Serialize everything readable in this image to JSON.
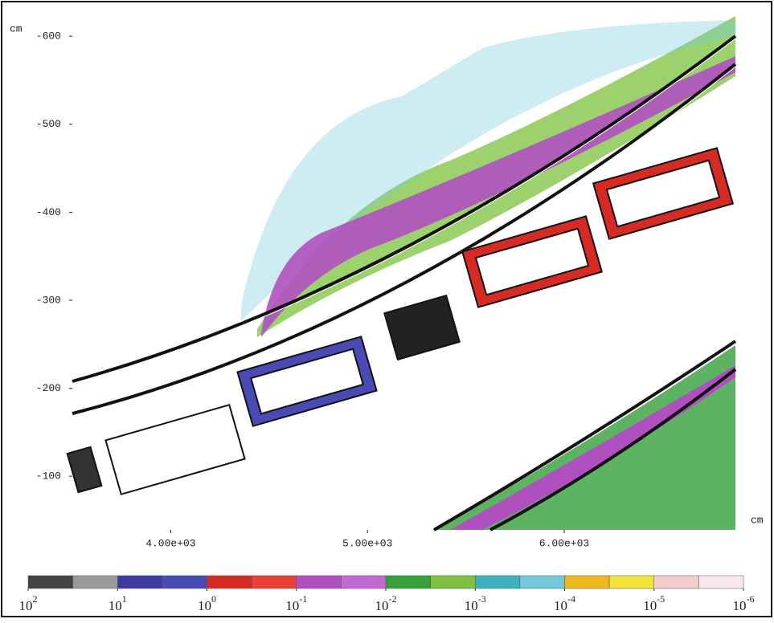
{
  "chart_data": {
    "type": "heatmap",
    "x_label": "cm",
    "y_label": "cm",
    "xlim": [
      3500,
      6870
    ],
    "ylim": [
      -39,
      -623
    ],
    "xticks": [
      {
        "value": 4000,
        "label": "4.00e+03"
      },
      {
        "value": 5000,
        "label": "5.00e+03"
      },
      {
        "value": 6000,
        "label": "6.00e+03"
      }
    ],
    "yticks": [
      -100,
      -200,
      -300,
      -400,
      -500,
      -600
    ],
    "colorbar": {
      "log_scale": true,
      "lim": [
        100,
        1e-06
      ],
      "colors": [
        "#444444",
        "#9a9a9a",
        "#3a3aa0",
        "#4a4ab4",
        "#d82a24",
        "#ea4038",
        "#b050c0",
        "#c468d4",
        "#36a03c",
        "#7cc23e",
        "#3fb0c0",
        "#74cadb",
        "#f0b81e",
        "#f2e23a",
        "#f2cccc",
        "#f8e8ec"
      ],
      "ticks": [
        {
          "value": 100,
          "label": "10",
          "exponent": "2"
        },
        {
          "value": 10,
          "label": "10",
          "exponent": "1"
        },
        {
          "value": 1,
          "label": "10",
          "exponent": "0"
        },
        {
          "value": 0.1,
          "label": "10",
          "exponent": "-1"
        },
        {
          "value": 0.01,
          "label": "10",
          "exponent": "-2"
        },
        {
          "value": 0.001,
          "label": "10",
          "exponent": "-3"
        },
        {
          "value": 0.0001,
          "label": "10",
          "exponent": "-4"
        },
        {
          "value": 1e-05,
          "label": "10",
          "exponent": "-5"
        },
        {
          "value": 1e-06,
          "label": "10",
          "exponent": "-6"
        }
      ]
    }
  }
}
